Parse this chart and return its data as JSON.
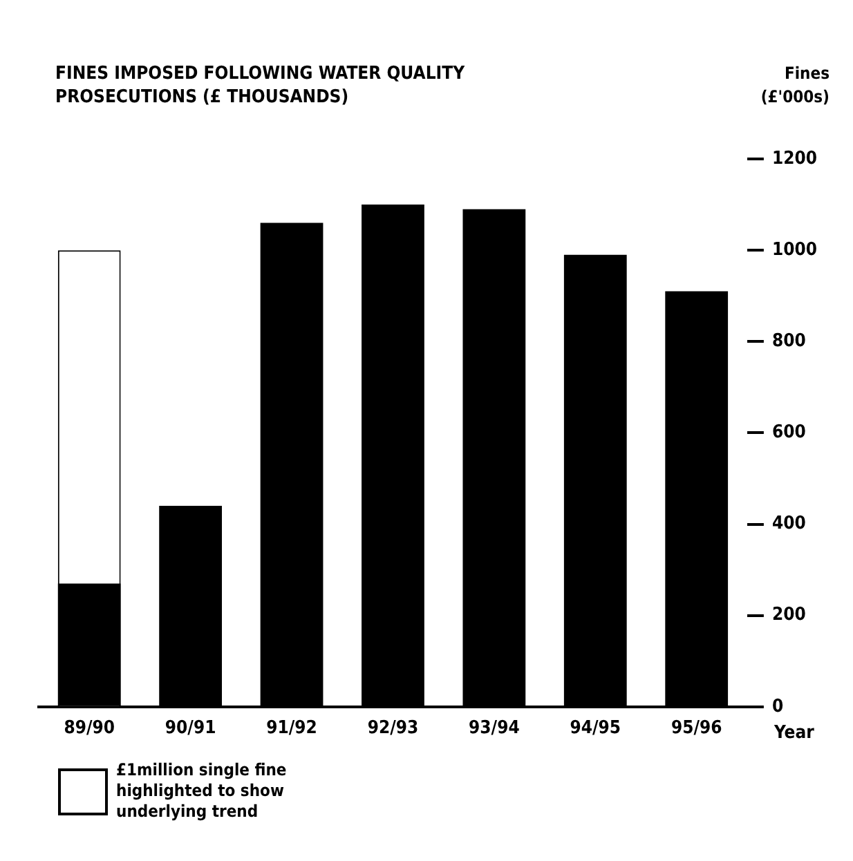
{
  "chart_data": {
    "type": "bar",
    "title": "FINES IMPOSED FOLLOWING WATER QUALITY PROSECUTIONS (£ THOUSANDS)",
    "ylabel": "Fines (£'000s)",
    "xlabel": "Year",
    "categories": [
      "89/90",
      "90/91",
      "91/92",
      "92/93",
      "93/94",
      "94/95",
      "95/96"
    ],
    "series": [
      {
        "color": "#000000",
        "values": [
          270,
          440,
          1060,
          1100,
          1090,
          990,
          910
        ]
      },
      {
        "name": "£1million single fine highlighted to show underlying trend",
        "color": "#ffffff",
        "values": [
          1000,
          null,
          null,
          null,
          null,
          null,
          null
        ]
      }
    ],
    "ylim": [
      0,
      1200
    ],
    "yticks": [
      0,
      200,
      400,
      600,
      800,
      1000,
      1200
    ],
    "grid": false,
    "legend": "bottom left"
  }
}
